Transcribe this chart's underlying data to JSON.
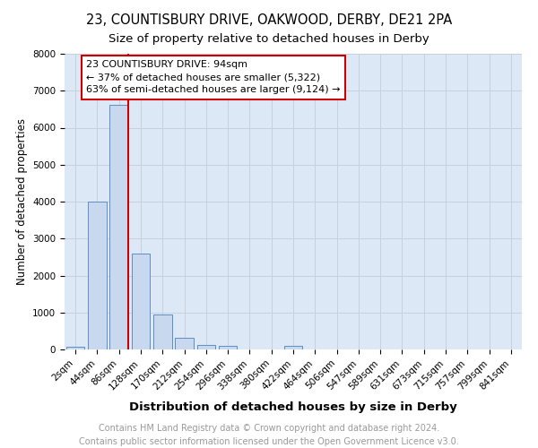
{
  "title1": "23, COUNTISBURY DRIVE, OAKWOOD, DERBY, DE21 2PA",
  "title2": "Size of property relative to detached houses in Derby",
  "xlabel": "Distribution of detached houses by size in Derby",
  "ylabel": "Number of detached properties",
  "bar_labels": [
    "2sqm",
    "44sqm",
    "86sqm",
    "128sqm",
    "170sqm",
    "212sqm",
    "254sqm",
    "296sqm",
    "338sqm",
    "380sqm",
    "422sqm",
    "464sqm",
    "506sqm",
    "547sqm",
    "589sqm",
    "631sqm",
    "673sqm",
    "715sqm",
    "757sqm",
    "799sqm",
    "841sqm"
  ],
  "bar_values": [
    75,
    4000,
    6620,
    2600,
    950,
    325,
    130,
    90,
    5,
    5,
    90,
    0,
    0,
    0,
    0,
    0,
    0,
    0,
    0,
    0,
    0
  ],
  "bar_color": "#c8d8ee",
  "bar_edge_color": "#5b8ec4",
  "annotation_text": "23 COUNTISBURY DRIVE: 94sqm\n← 37% of detached houses are smaller (5,322)\n63% of semi-detached houses are larger (9,124) →",
  "annotation_box_color": "#ffffff",
  "annotation_box_edge_color": "#cc0000",
  "vline_color": "#cc0000",
  "ylim": [
    0,
    8000
  ],
  "yticks": [
    0,
    1000,
    2000,
    3000,
    4000,
    5000,
    6000,
    7000,
    8000
  ],
  "grid_color": "#c8d0dc",
  "background_color": "#dce8f5",
  "footer_text": "Contains HM Land Registry data © Crown copyright and database right 2024.\nContains public sector information licensed under the Open Government Licence v3.0.",
  "title1_fontsize": 10.5,
  "title2_fontsize": 9.5,
  "xlabel_fontsize": 9.5,
  "ylabel_fontsize": 8.5,
  "tick_fontsize": 7.5,
  "annotation_fontsize": 8.0,
  "footer_fontsize": 7.0
}
